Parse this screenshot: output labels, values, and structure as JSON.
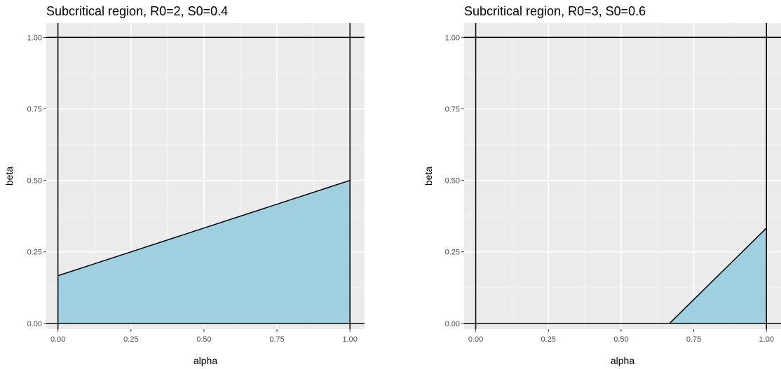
{
  "chart_data": [
    {
      "type": "area",
      "title": "Subcritical region, R0=2, S0=0.4",
      "xlabel": "alpha",
      "ylabel": "beta",
      "xlim": [
        -0.04,
        1.05
      ],
      "ylim": [
        -0.02,
        1.05
      ],
      "x_ticks": [
        0,
        0.25,
        0.5,
        0.75,
        1
      ],
      "x_tick_labels": [
        "0.00",
        "0.25",
        "0.50",
        "0.75",
        "1.00"
      ],
      "y_ticks": [
        0,
        0.25,
        0.5,
        0.75,
        1
      ],
      "y_tick_labels": [
        "0.00",
        "0.25",
        "0.50",
        "0.75",
        "1.00"
      ],
      "grid": true,
      "fill_color": "#a0cfe0",
      "region": [
        [
          0,
          0
        ],
        [
          0,
          0.1667
        ],
        [
          1,
          0.5
        ],
        [
          1,
          0
        ]
      ],
      "boundary": [
        [
          0,
          0.1667
        ],
        [
          1,
          0.5
        ]
      ],
      "reference_lines": {
        "x": [
          0,
          1
        ],
        "y": [
          0,
          1
        ]
      }
    },
    {
      "type": "area",
      "title": "Subcritical region, R0=3, S0=0.6",
      "xlabel": "alpha",
      "ylabel": "beta",
      "xlim": [
        -0.04,
        1.05
      ],
      "ylim": [
        -0.02,
        1.05
      ],
      "x_ticks": [
        0,
        0.25,
        0.5,
        0.75,
        1
      ],
      "x_tick_labels": [
        "0.00",
        "0.25",
        "0.50",
        "0.75",
        "1.00"
      ],
      "y_ticks": [
        0,
        0.25,
        0.5,
        0.75,
        1
      ],
      "y_tick_labels": [
        "0.00",
        "0.25",
        "0.50",
        "0.75",
        "1.00"
      ],
      "grid": true,
      "fill_color": "#a0cfe0",
      "region": [
        [
          0.6667,
          0
        ],
        [
          1,
          0.3333
        ],
        [
          1,
          0
        ]
      ],
      "boundary": [
        [
          0.6667,
          0
        ],
        [
          1,
          0.3333
        ]
      ],
      "reference_lines": {
        "x": [
          0,
          1
        ],
        "y": [
          0,
          1
        ]
      }
    }
  ]
}
